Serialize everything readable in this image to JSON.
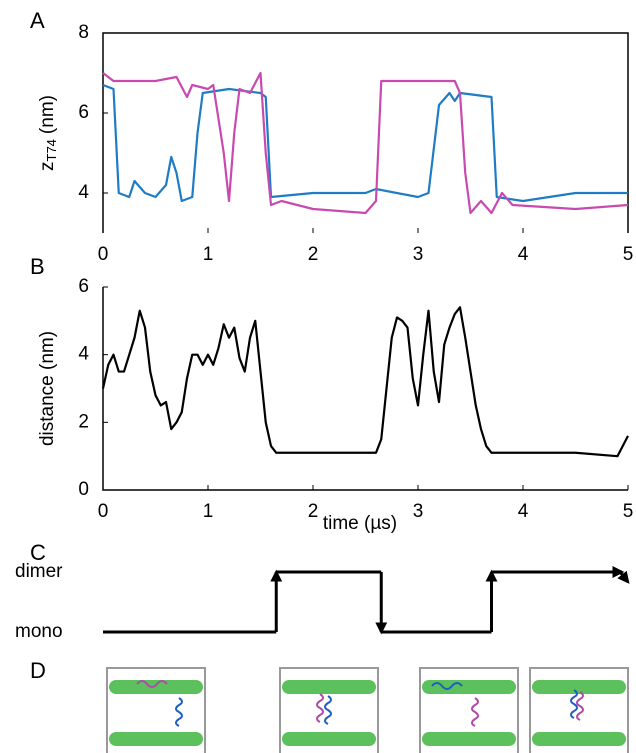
{
  "chart_data": [
    {
      "type": "line",
      "label": "A",
      "ylabel": "z",
      "ylabel_sub": "T74",
      "ylabel_unit": "(nm)",
      "xlim": [
        0,
        5
      ],
      "xticks": [
        0,
        1,
        2,
        3,
        4,
        5
      ],
      "ylim": [
        3,
        8
      ],
      "yticks": [
        4,
        6,
        8
      ],
      "series": [
        {
          "color": "#1f7cc4",
          "x": [
            0,
            0.1,
            0.15,
            0.25,
            0.3,
            0.4,
            0.5,
            0.6,
            0.65,
            0.7,
            0.75,
            0.85,
            0.9,
            0.95,
            1.2,
            1.5,
            1.55,
            1.6,
            2.0,
            2.5,
            2.6,
            3.0,
            3.1,
            3.2,
            3.3,
            3.35,
            3.4,
            3.7,
            3.75,
            4.0,
            4.5,
            5.0
          ],
          "values": [
            6.7,
            6.6,
            4.0,
            3.9,
            4.3,
            4.0,
            3.9,
            4.2,
            4.9,
            4.5,
            3.8,
            3.9,
            5.5,
            6.5,
            6.6,
            6.5,
            6.4,
            3.9,
            4.0,
            4.0,
            4.1,
            3.9,
            4.0,
            6.2,
            6.5,
            6.3,
            6.5,
            6.4,
            3.9,
            3.8,
            4.0,
            4.0
          ]
        },
        {
          "color": "#c84ab0",
          "x": [
            0,
            0.1,
            0.5,
            0.7,
            0.8,
            0.85,
            1.0,
            1.05,
            1.15,
            1.2,
            1.25,
            1.3,
            1.4,
            1.5,
            1.55,
            1.6,
            1.7,
            2.0,
            2.5,
            2.6,
            2.65,
            3.0,
            3.35,
            3.4,
            3.45,
            3.5,
            3.6,
            3.7,
            3.8,
            3.9,
            4.5,
            5.0
          ],
          "values": [
            7.0,
            6.8,
            6.8,
            6.9,
            6.4,
            6.7,
            6.6,
            6.7,
            5.0,
            3.8,
            5.5,
            6.6,
            6.5,
            7.0,
            5.0,
            3.7,
            3.8,
            3.6,
            3.5,
            3.8,
            6.8,
            6.8,
            6.8,
            6.5,
            4.5,
            3.5,
            3.8,
            3.5,
            4.0,
            3.7,
            3.6,
            3.7
          ]
        }
      ]
    },
    {
      "type": "line",
      "label": "B",
      "ylabel": "distance (nm)",
      "xlabel": "time (µs)",
      "xlim": [
        0,
        5
      ],
      "xticks": [
        0,
        1,
        2,
        3,
        4,
        5
      ],
      "ylim": [
        0,
        6
      ],
      "yticks": [
        0,
        2,
        4,
        6
      ],
      "series": [
        {
          "color": "#000000",
          "x": [
            0,
            0.05,
            0.1,
            0.15,
            0.2,
            0.25,
            0.3,
            0.35,
            0.4,
            0.45,
            0.5,
            0.55,
            0.6,
            0.65,
            0.7,
            0.75,
            0.8,
            0.85,
            0.9,
            0.95,
            1.0,
            1.05,
            1.1,
            1.15,
            1.2,
            1.25,
            1.3,
            1.35,
            1.4,
            1.45,
            1.5,
            1.55,
            1.6,
            1.65,
            1.7,
            2.0,
            2.3,
            2.6,
            2.65,
            2.7,
            2.75,
            2.8,
            2.85,
            2.9,
            2.95,
            3.0,
            3.05,
            3.1,
            3.15,
            3.2,
            3.25,
            3.3,
            3.35,
            3.4,
            3.45,
            3.5,
            3.55,
            3.6,
            3.65,
            3.7,
            4.0,
            4.5,
            4.9,
            5.0
          ],
          "values": [
            3.0,
            3.7,
            4.0,
            3.5,
            3.5,
            4.0,
            4.5,
            5.3,
            4.8,
            3.5,
            2.8,
            2.5,
            2.6,
            1.8,
            2.0,
            2.3,
            3.3,
            4.0,
            4.0,
            3.7,
            4.0,
            3.7,
            4.2,
            4.9,
            4.5,
            4.8,
            3.9,
            3.5,
            4.5,
            5.0,
            3.5,
            2.0,
            1.3,
            1.1,
            1.1,
            1.1,
            1.1,
            1.1,
            1.5,
            3.0,
            4.5,
            5.1,
            5.0,
            4.8,
            3.3,
            2.5,
            4.0,
            5.3,
            3.5,
            2.6,
            4.3,
            4.8,
            5.2,
            5.4,
            4.5,
            3.5,
            2.5,
            1.8,
            1.3,
            1.1,
            1.1,
            1.1,
            1.0,
            1.6
          ]
        }
      ]
    },
    {
      "type": "step",
      "label": "C",
      "y_categories": [
        "mono",
        "dimer"
      ],
      "xlim": [
        0,
        5
      ],
      "x": [
        0,
        1.65,
        2.65,
        3.7,
        5
      ],
      "values": [
        0,
        1,
        0,
        1,
        1
      ]
    }
  ],
  "panel_d_label": "D"
}
